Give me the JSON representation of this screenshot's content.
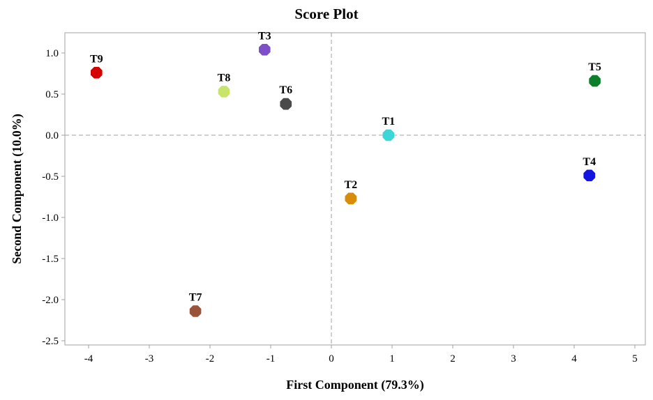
{
  "chart_data": {
    "type": "scatter",
    "title": "Score Plot",
    "xlabel": "First Component (79.3%)",
    "ylabel": "Second Component (10.0%)",
    "xlim": [
      -4.4,
      5.05
    ],
    "ylim": [
      -2.58,
      1.25
    ],
    "xticks": [
      -4,
      -3,
      -2,
      -1,
      0,
      1,
      2,
      3,
      4,
      5
    ],
    "yticks": [
      1.0,
      0.5,
      0.0,
      -0.5,
      -1.0,
      -1.5,
      -2.0,
      -2.5
    ],
    "ytick_labels": [
      "1.0",
      "0.5",
      "0.0",
      "-0.5",
      "-1.0",
      "-1.5",
      "-2.0",
      "-2.5"
    ],
    "reference_lines": {
      "x": 0,
      "y": 0
    },
    "grid": false,
    "points": [
      {
        "label": "T1",
        "x": 0.94,
        "y": 0.0,
        "color": "#3dd6d6"
      },
      {
        "label": "T2",
        "x": 0.32,
        "y": -0.77,
        "color": "#d98c0a"
      },
      {
        "label": "T3",
        "x": -1.1,
        "y": 1.04,
        "color": "#7f4fc9"
      },
      {
        "label": "T4",
        "x": 4.25,
        "y": -0.49,
        "color": "#1414e0"
      },
      {
        "label": "T5",
        "x": 4.34,
        "y": 0.66,
        "color": "#0b7f2a"
      },
      {
        "label": "T6",
        "x": -0.75,
        "y": 0.38,
        "color": "#4a4a4a"
      },
      {
        "label": "T7",
        "x": -2.24,
        "y": -2.14,
        "color": "#9a5238"
      },
      {
        "label": "T8",
        "x": -1.77,
        "y": 0.53,
        "color": "#c8e46a"
      },
      {
        "label": "T9",
        "x": -3.87,
        "y": 0.76,
        "color": "#d40000"
      }
    ]
  }
}
